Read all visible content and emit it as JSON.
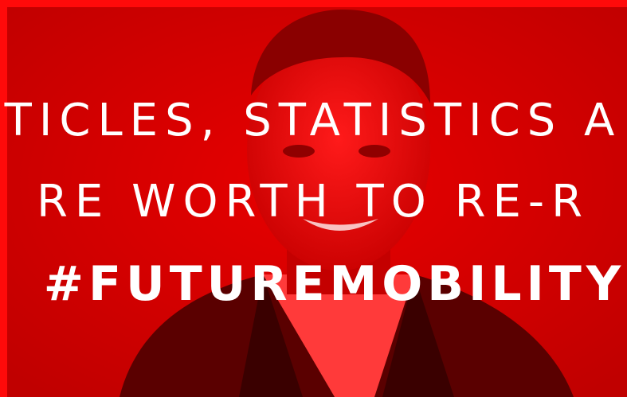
{
  "overlay": {
    "lines": [
      "TICLES, STATISTICS A",
      "RE WORTH TO RE-R"
    ],
    "hashtag": "#FUTUREMOBILITY"
  }
}
